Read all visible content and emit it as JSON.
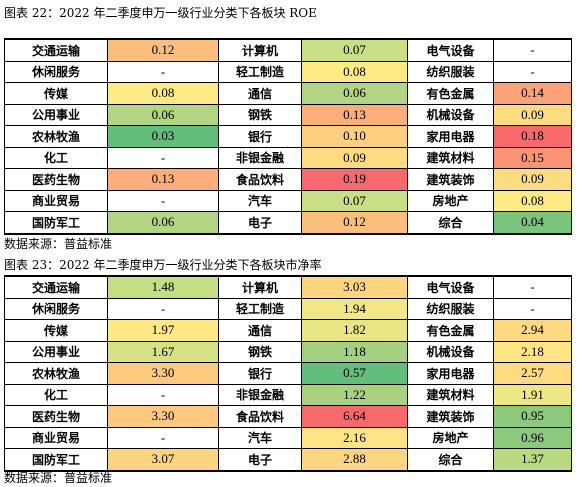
{
  "table1": {
    "caption": "图表 22：2022 年二季度申万一级行业分类下各板块 ROE",
    "source": "数据来源：普益标准",
    "rows": [
      [
        {
          "l": "交通运输",
          "v": "0.12",
          "c": "#fbbf7c"
        },
        {
          "l": "计算机",
          "v": "0.07",
          "c": "#c6e083"
        },
        {
          "l": "电气设备",
          "v": "-",
          "c": "#ffffff"
        }
      ],
      [
        {
          "l": "休闲服务",
          "v": "-",
          "c": "#ffffff"
        },
        {
          "l": "轻工制造",
          "v": "0.08",
          "c": "#ffeb84"
        },
        {
          "l": "纺织服装",
          "v": "-",
          "c": "#ffffff"
        }
      ],
      [
        {
          "l": "传媒",
          "v": "0.08",
          "c": "#ffeb84"
        },
        {
          "l": "通信",
          "v": "0.06",
          "c": "#b1d580"
        },
        {
          "l": "有色金属",
          "v": "0.14",
          "c": "#fba277"
        }
      ],
      [
        {
          "l": "公用事业",
          "v": "0.06",
          "c": "#b1d580"
        },
        {
          "l": "钢铁",
          "v": "0.13",
          "c": "#fbae79"
        },
        {
          "l": "机械设备",
          "v": "0.09",
          "c": "#fedd81"
        }
      ],
      [
        {
          "l": "农林牧渔",
          "v": "0.03",
          "c": "#63be7b"
        },
        {
          "l": "银行",
          "v": "0.10",
          "c": "#fdd07f"
        },
        {
          "l": "家用电器",
          "v": "0.18",
          "c": "#f8696b"
        }
      ],
      [
        {
          "l": "化工",
          "v": "-",
          "c": "#ffffff"
        },
        {
          "l": "非银金融",
          "v": "0.09",
          "c": "#fedd81"
        },
        {
          "l": "建筑材料",
          "v": "0.15",
          "c": "#fa9473"
        }
      ],
      [
        {
          "l": "医药生物",
          "v": "0.13",
          "c": "#fbae79"
        },
        {
          "l": "食品饮料",
          "v": "0.19",
          "c": "#f8696b"
        },
        {
          "l": "建筑装饰",
          "v": "0.09",
          "c": "#fedd81"
        }
      ],
      [
        {
          "l": "商业贸易",
          "v": "-",
          "c": "#ffffff"
        },
        {
          "l": "汽车",
          "v": "0.07",
          "c": "#c6e083"
        },
        {
          "l": "房地产",
          "v": "0.08",
          "c": "#ffeb84"
        }
      ],
      [
        {
          "l": "国防军工",
          "v": "0.06",
          "c": "#b1d580"
        },
        {
          "l": "电子",
          "v": "0.12",
          "c": "#fbbf7c"
        },
        {
          "l": "综合",
          "v": "0.04",
          "c": "#7ac57d"
        }
      ]
    ]
  },
  "table2": {
    "caption": "图表 23：2022 年二季度申万一级行业分类下各板块市净率",
    "source": "数据来源：普益标准",
    "rows": [
      [
        {
          "l": "交通运输",
          "v": "1.48",
          "c": "#c3df82"
        },
        {
          "l": "计算机",
          "v": "3.03",
          "c": "#fed680"
        },
        {
          "l": "电气设备",
          "v": "-",
          "c": "#ffffff"
        }
      ],
      [
        {
          "l": "休闲服务",
          "v": "-",
          "c": "#ffffff"
        },
        {
          "l": "轻工制造",
          "v": "1.94",
          "c": "#f1e784"
        },
        {
          "l": "纺织服装",
          "v": "-",
          "c": "#ffffff"
        }
      ],
      [
        {
          "l": "传媒",
          "v": "1.97",
          "c": "#fee983"
        },
        {
          "l": "通信",
          "v": "1.82",
          "c": "#e8e583"
        },
        {
          "l": "有色金属",
          "v": "2.94",
          "c": "#fed981"
        }
      ],
      [
        {
          "l": "公用事业",
          "v": "1.67",
          "c": "#d6e283"
        },
        {
          "l": "钢铁",
          "v": "1.18",
          "c": "#a4d17f"
        },
        {
          "l": "机械设备",
          "v": "2.18",
          "c": "#fee583"
        }
      ],
      [
        {
          "l": "农林牧渔",
          "v": "3.30",
          "c": "#fdc97e"
        },
        {
          "l": "银行",
          "v": "0.57",
          "c": "#63be7b"
        },
        {
          "l": "家用电器",
          "v": "2.57",
          "c": "#feda81"
        }
      ],
      [
        {
          "l": "化工",
          "v": "-",
          "c": "#ffffff"
        },
        {
          "l": "非银金融",
          "v": "1.22",
          "c": "#a8d27f"
        },
        {
          "l": "建筑材料",
          "v": "1.91",
          "c": "#efe684"
        }
      ],
      [
        {
          "l": "医药生物",
          "v": "3.30",
          "c": "#fdc97e"
        },
        {
          "l": "食品饮料",
          "v": "6.64",
          "c": "#f8696b"
        },
        {
          "l": "建筑装饰",
          "v": "0.95",
          "c": "#8bc97d"
        }
      ],
      [
        {
          "l": "商业贸易",
          "v": "-",
          "c": "#ffffff"
        },
        {
          "l": "汽车",
          "v": "2.16",
          "c": "#fee483"
        },
        {
          "l": "房地产",
          "v": "0.96",
          "c": "#8cc97d"
        }
      ],
      [
        {
          "l": "国防军工",
          "v": "3.07",
          "c": "#fdd47f"
        },
        {
          "l": "电子",
          "v": "2.88",
          "c": "#fed680"
        },
        {
          "l": "综合",
          "v": "1.37",
          "c": "#b8da81"
        }
      ]
    ]
  }
}
